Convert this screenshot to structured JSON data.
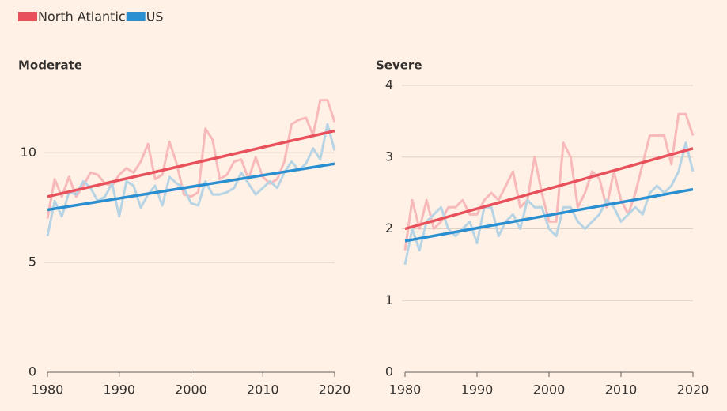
{
  "legend_series": [
    {
      "name": "North Atlantic",
      "color": "#e8505b"
    },
    {
      "name": "US",
      "color": "#2a8fd1"
    }
  ],
  "chart_data": [
    {
      "type": "line",
      "title": "Moderate",
      "x": [
        1980,
        1981,
        1982,
        1983,
        1984,
        1985,
        1986,
        1987,
        1988,
        1989,
        1990,
        1991,
        1992,
        1993,
        1994,
        1995,
        1996,
        1997,
        1998,
        1999,
        2000,
        2001,
        2002,
        2003,
        2004,
        2005,
        2006,
        2007,
        2008,
        2009,
        2010,
        2011,
        2012,
        2013,
        2014,
        2015,
        2016,
        2017,
        2018,
        2019,
        2020
      ],
      "series": [
        {
          "color": "#f7b9b9",
          "values": [
            7.0,
            8.8,
            8.0,
            8.9,
            8.0,
            8.5,
            9.1,
            9.0,
            8.6,
            8.5,
            9.0,
            9.3,
            9.1,
            9.6,
            10.4,
            8.8,
            9.0,
            10.5,
            9.5,
            8.1,
            8.0,
            8.2,
            11.1,
            10.6,
            8.8,
            9.0,
            9.6,
            9.7,
            8.8,
            9.8,
            8.9,
            8.6,
            8.8,
            9.6,
            11.3,
            11.5,
            11.6,
            10.8,
            12.4,
            12.4,
            11.4
          ],
          "trend": {
            "x": [
              1980,
              2020
            ],
            "values": [
              8.0,
              11.0
            ]
          }
        },
        {
          "color": "#b7d4e5",
          "values": [
            6.2,
            7.8,
            7.1,
            8.2,
            8.1,
            8.7,
            8.4,
            7.8,
            8.0,
            8.6,
            7.1,
            8.7,
            8.5,
            7.5,
            8.1,
            8.5,
            7.6,
            8.9,
            8.6,
            8.4,
            7.7,
            7.6,
            8.7,
            8.1,
            8.1,
            8.2,
            8.4,
            9.1,
            8.6,
            8.1,
            8.4,
            8.7,
            8.4,
            9.1,
            9.6,
            9.2,
            9.5,
            10.2,
            9.7,
            11.3,
            10.1
          ],
          "trend": {
            "x": [
              1980,
              2020
            ],
            "values": [
              7.4,
              9.5
            ]
          }
        }
      ],
      "xlim": [
        1980,
        2020
      ],
      "xticks": [
        1980,
        1990,
        2000,
        2010,
        2020
      ],
      "ylim": [
        0,
        13
      ],
      "yticks": [
        0,
        5,
        10
      ],
      "grid": true
    },
    {
      "type": "line",
      "title": "Severe",
      "x": [
        1980,
        1981,
        1982,
        1983,
        1984,
        1985,
        1986,
        1987,
        1988,
        1989,
        1990,
        1991,
        1992,
        1993,
        1994,
        1995,
        1996,
        1997,
        1998,
        1999,
        2000,
        2001,
        2002,
        2003,
        2004,
        2005,
        2006,
        2007,
        2008,
        2009,
        2010,
        2011,
        2012,
        2013,
        2014,
        2015,
        2016,
        2017,
        2018,
        2019,
        2020
      ],
      "series": [
        {
          "color": "#f7b9b9",
          "values": [
            1.7,
            2.4,
            2.0,
            2.4,
            2.0,
            2.1,
            2.3,
            2.3,
            2.4,
            2.2,
            2.2,
            2.4,
            2.5,
            2.4,
            2.6,
            2.8,
            2.3,
            2.4,
            3.0,
            2.5,
            2.1,
            2.1,
            3.2,
            3.0,
            2.3,
            2.5,
            2.8,
            2.7,
            2.3,
            2.8,
            2.4,
            2.2,
            2.5,
            2.9,
            3.3,
            3.3,
            3.3,
            2.9,
            3.6,
            3.6,
            3.3
          ],
          "trend": {
            "x": [
              1980,
              2020
            ],
            "values": [
              2.0,
              3.12
            ]
          }
        },
        {
          "color": "#b7d4e5",
          "values": [
            1.5,
            2.0,
            1.7,
            2.1,
            2.2,
            2.3,
            2.0,
            1.9,
            2.0,
            2.1,
            1.8,
            2.3,
            2.3,
            1.9,
            2.1,
            2.2,
            2.0,
            2.4,
            2.3,
            2.3,
            2.0,
            1.9,
            2.3,
            2.3,
            2.1,
            2.0,
            2.1,
            2.2,
            2.4,
            2.3,
            2.1,
            2.2,
            2.3,
            2.2,
            2.5,
            2.6,
            2.5,
            2.6,
            2.8,
            3.2,
            2.8
          ],
          "trend": {
            "x": [
              1980,
              2020
            ],
            "values": [
              1.83,
              2.55
            ]
          }
        }
      ],
      "xlim": [
        1980,
        2020
      ],
      "xticks": [
        1980,
        1990,
        2000,
        2010,
        2020
      ],
      "ylim": [
        0,
        4
      ],
      "yticks": [
        0,
        1,
        2,
        3,
        4
      ],
      "grid": true
    }
  ]
}
